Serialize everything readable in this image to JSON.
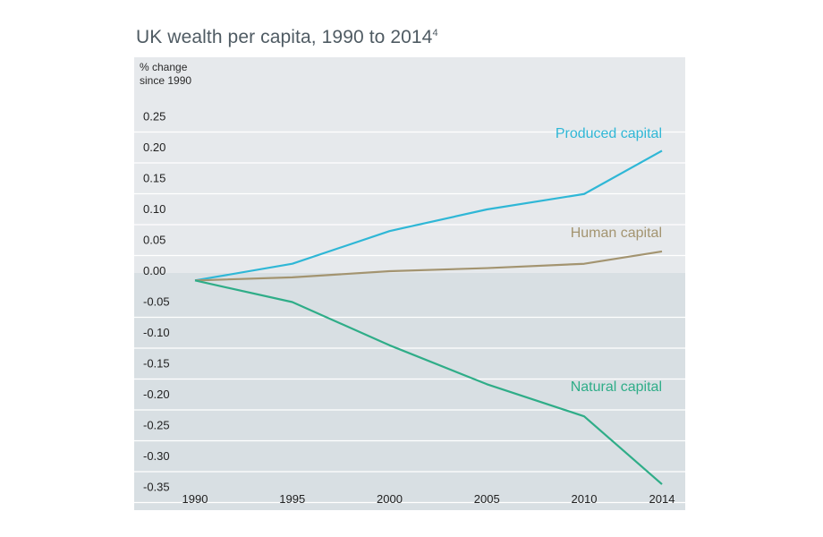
{
  "title": "UK wealth per capita, 1990 to 2014",
  "title_footnote": "4",
  "colors": {
    "panel_upper": "#e6e9ec",
    "panel_lower": "#d8dfe3",
    "grid": "#ffffff",
    "produced": "#2fb7d6",
    "human": "#a39470",
    "natural": "#2fad88"
  },
  "chart_data": {
    "type": "line",
    "ylabel_line1": "% change",
    "ylabel_line2": "since 1990",
    "x": [
      1990,
      1995,
      2000,
      2005,
      2010,
      2014
    ],
    "x_tick_labels": [
      "1990",
      "1995",
      "2000",
      "2005",
      "2010",
      "2014"
    ],
    "y_ticks": [
      0.25,
      0.2,
      0.15,
      0.1,
      0.05,
      0.0,
      -0.05,
      -0.1,
      -0.15,
      -0.2,
      -0.25,
      -0.3,
      -0.35
    ],
    "y_tick_labels": [
      "0.25",
      "0.20",
      "0.15",
      "0.10",
      "0.05",
      "0.00",
      "-0.05",
      "-0.10",
      "-0.15",
      "-0.20",
      "-0.25",
      "-0.30",
      "-0.35"
    ],
    "ylim": [
      -0.37,
      0.3
    ],
    "grid": true,
    "series": [
      {
        "name": "Produced capital",
        "color_key": "produced",
        "values": [
          -0.015,
          0.012,
          0.065,
          0.1,
          0.125,
          0.195
        ]
      },
      {
        "name": "Human capital",
        "color_key": "human",
        "values": [
          -0.015,
          -0.01,
          0.0,
          0.005,
          0.012,
          0.032
        ]
      },
      {
        "name": "Natural capital",
        "color_key": "natural",
        "values": [
          -0.015,
          -0.05,
          -0.12,
          -0.183,
          -0.235,
          -0.345
        ]
      }
    ]
  }
}
